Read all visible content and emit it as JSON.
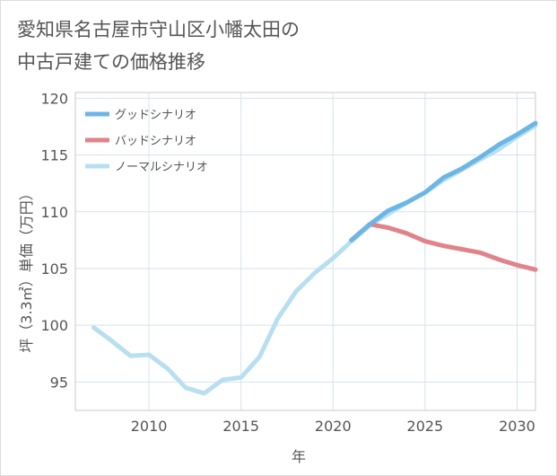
{
  "title": {
    "line1": "愛知県名古屋市守山区小幡太田の",
    "line2": "中古戸建ての価格推移"
  },
  "chart_data": {
    "type": "line",
    "title": "愛知県名古屋市守山区小幡太田の中古戸建ての価格推移",
    "xlabel": "年",
    "ylabel": "坪（3.3㎡）単価（万円）",
    "xlim": [
      2006,
      2031
    ],
    "ylim": [
      92.5,
      120.5
    ],
    "x_ticks": [
      2010,
      2015,
      2020,
      2025,
      2030
    ],
    "y_ticks": [
      95,
      100,
      105,
      110,
      115,
      120
    ],
    "grid": true,
    "legend_position": "top-left",
    "series": [
      {
        "name": "グッドシナリオ",
        "color": "#6cb6e6",
        "x": [
          2021,
          2022,
          2023,
          2024,
          2025,
          2026,
          2027,
          2028,
          2029,
          2030,
          2031
        ],
        "values": [
          107.5,
          108.9,
          110.1,
          110.8,
          111.7,
          113.0,
          113.8,
          114.8,
          115.9,
          116.8,
          117.8
        ]
      },
      {
        "name": "バッドシナリオ",
        "color": "#e0838a",
        "x": [
          2021,
          2022,
          2023,
          2024,
          2025,
          2026,
          2027,
          2028,
          2029,
          2030,
          2031
        ],
        "values": [
          107.5,
          108.9,
          108.6,
          108.1,
          107.4,
          107.0,
          106.7,
          106.4,
          105.8,
          105.3,
          104.9
        ]
      },
      {
        "name": "ノーマルシナリオ",
        "color": "#b7dff1",
        "x": [
          2007,
          2008,
          2009,
          2010,
          2011,
          2012,
          2013,
          2014,
          2015,
          2016,
          2017,
          2018,
          2019,
          2020,
          2021,
          2022,
          2023,
          2024,
          2025,
          2026,
          2027,
          2028,
          2029,
          2030,
          2031
        ],
        "values": [
          99.8,
          98.6,
          97.3,
          97.4,
          96.2,
          94.5,
          94.0,
          95.2,
          95.4,
          97.2,
          100.6,
          103.0,
          104.6,
          105.9,
          107.4,
          108.8,
          109.8,
          110.8,
          111.7,
          112.8,
          113.7,
          114.6,
          115.5,
          116.6,
          117.6
        ]
      }
    ]
  }
}
